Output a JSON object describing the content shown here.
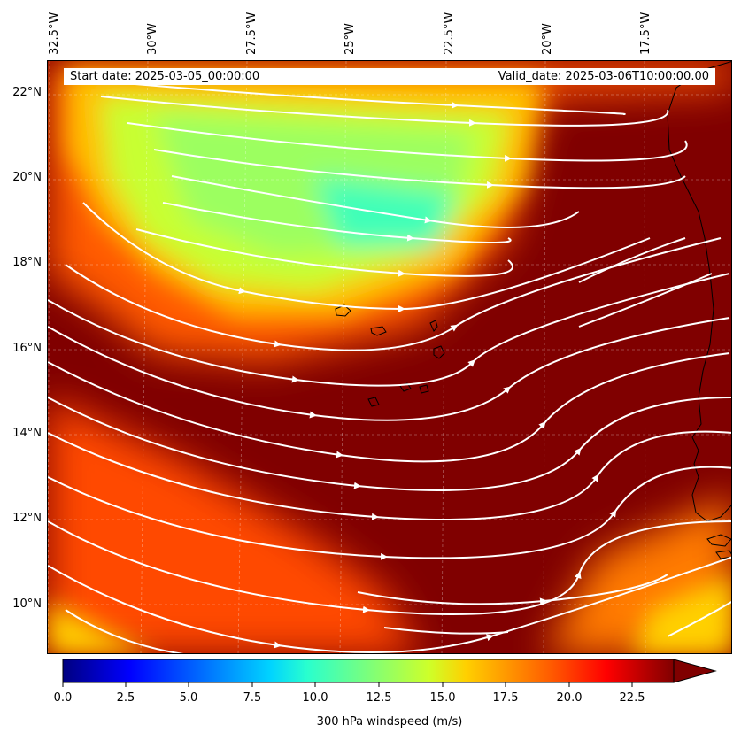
{
  "header": {
    "start_date": "Start date: 2025-03-05_00:00:00",
    "valid_date": "Valid_date: 2025-03-06T10:00:00.00"
  },
  "lon_labels": [
    "32.5°W",
    "30°W",
    "27.5°W",
    "25°W",
    "22.5°W",
    "20°W",
    "17.5°W"
  ],
  "lat_labels": [
    "22°N",
    "20°N",
    "18°N",
    "16°N",
    "14°N",
    "12°N",
    "10°N"
  ],
  "colorbar": {
    "label": "300 hPa windspeed (m/s)",
    "ticks": [
      "0.0",
      "2.5",
      "5.0",
      "7.5",
      "10.0",
      "12.5",
      "15.0",
      "17.5",
      "20.0",
      "22.5"
    ],
    "min": 0,
    "max": 25,
    "extend": "max",
    "colormap": "jet"
  },
  "map": {
    "variable": "300 hPa windspeed",
    "units": "m/s",
    "lon_range": [
      -33,
      -15
    ],
    "lat_range": [
      9,
      22.7
    ],
    "streamline_color": "#ffffff",
    "coastline_color": "#000000",
    "gridlines": true
  },
  "colors": {
    "high_wind": "#800000",
    "mid_wind": "#ff4000",
    "low_wind": "#40ffb0"
  }
}
